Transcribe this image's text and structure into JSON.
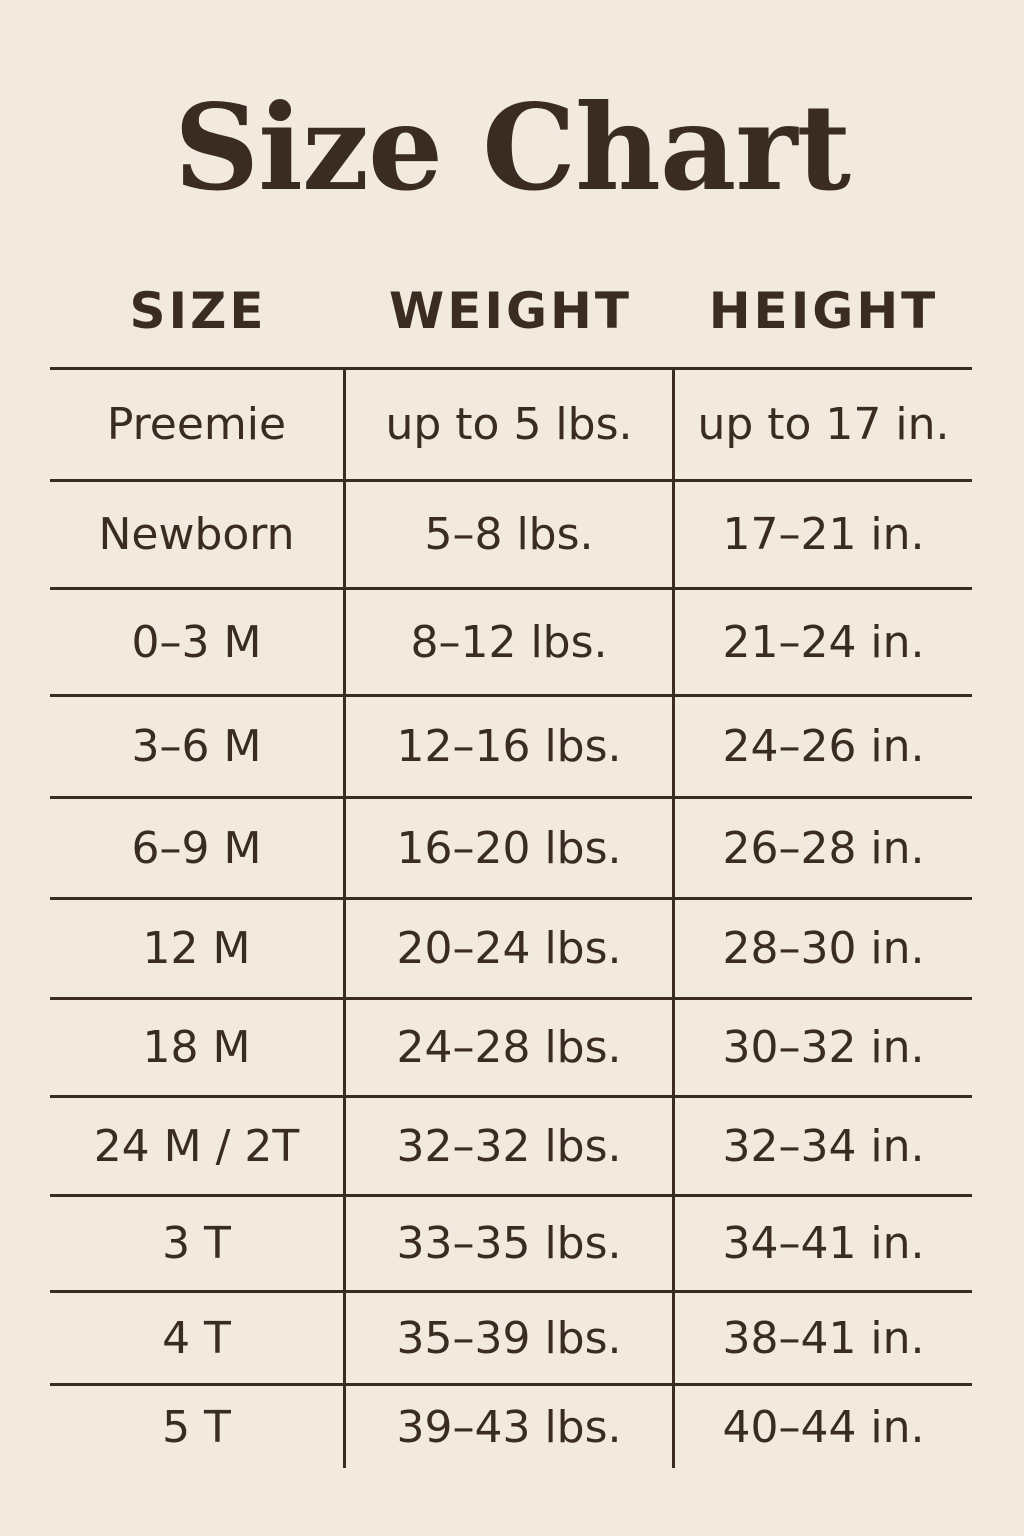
{
  "title": "Size Chart",
  "headers": [
    "SIZE",
    "WEIGHT",
    "HEIGHT"
  ],
  "rows": [
    [
      "Preemie",
      "up to 5 lbs.",
      "up to 17 in."
    ],
    [
      "Newborn",
      "5–8 lbs.",
      "17–21 in."
    ],
    [
      "0–3 M",
      "8–12 lbs.",
      "21–24 in."
    ],
    [
      "3–6 M",
      "12–16 lbs.",
      "24–26 in."
    ],
    [
      "6–9 M",
      "16–20 lbs.",
      "26–28 in."
    ],
    [
      "12 M",
      "20–24 lbs.",
      "28–30 in."
    ],
    [
      "18 M",
      "24–28 lbs.",
      "30–32 in."
    ],
    [
      "24 M / 2T",
      "32–32 lbs.",
      "32–34 in."
    ],
    [
      "3 T",
      "33–35 lbs.",
      "34–41 in."
    ],
    [
      "4 T",
      "35–39 lbs.",
      "38–41 in."
    ],
    [
      "5 T",
      "39–43 lbs.",
      "40–44 in."
    ]
  ]
}
